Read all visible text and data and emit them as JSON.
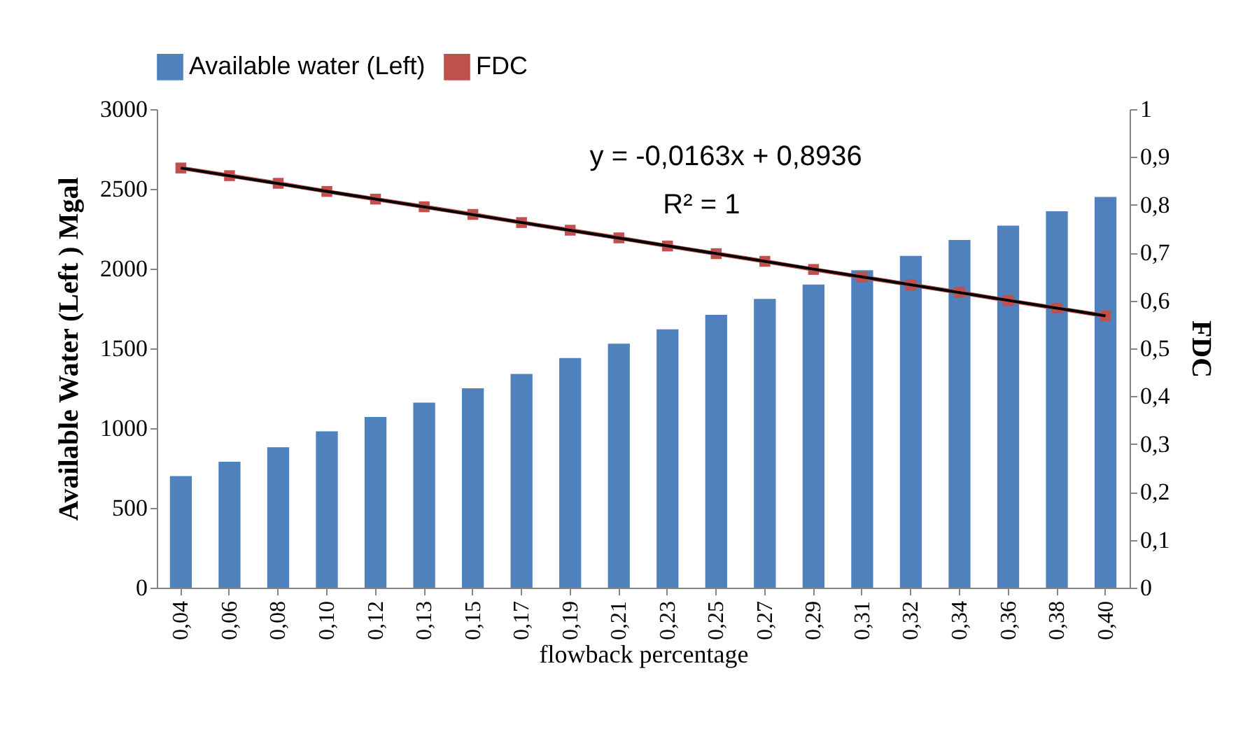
{
  "chart_data": {
    "type": "bar",
    "xlabel": "flowback percentage",
    "ylabel": "Available Water (Left )  Mgal",
    "y2label": "FDC",
    "categories": [
      "0,04",
      "0,06",
      "0,08",
      "0,10",
      "0,12",
      "0,13",
      "0,15",
      "0,17",
      "0,19",
      "0,21",
      "0,23",
      "0,25",
      "0,27",
      "0,29",
      "0,31",
      "0,32",
      "0,34",
      "0,36",
      "0,38",
      "0,40"
    ],
    "series": [
      {
        "name": "Available water (Left)",
        "color": "#4f81bd",
        "values": [
          700,
          790,
          880,
          980,
          1070,
          1160,
          1250,
          1340,
          1440,
          1530,
          1620,
          1710,
          1810,
          1900,
          1990,
          2080,
          2180,
          2270,
          2360,
          2450
        ]
      },
      {
        "name": "FDC",
        "type": "line",
        "axis": "y2",
        "color": "#c0504d",
        "marker": "square",
        "values": [
          0.877,
          0.861,
          0.845,
          0.828,
          0.812,
          0.796,
          0.78,
          0.763,
          0.747,
          0.731,
          0.714,
          0.698,
          0.682,
          0.665,
          0.649,
          0.633,
          0.617,
          0.6,
          0.584,
          0.568
        ]
      },
      {
        "type": "line",
        "axis": "y2",
        "color": "#000000",
        "marker": "none",
        "x": [
          "0,04",
          "0,40"
        ],
        "values": [
          0.877,
          0.568
        ]
      }
    ],
    "ylim": [
      0,
      3000
    ],
    "yticks": [
      0,
      500,
      1000,
      1500,
      2000,
      2500,
      3000
    ],
    "y2lim": [
      0,
      1
    ],
    "y2ticks": [
      0,
      {
        "value": 0.1,
        "label": "0,1"
      },
      {
        "value": 0.2,
        "label": "0,2"
      },
      {
        "value": 0.3,
        "label": "0,3"
      },
      {
        "value": 0.4,
        "label": "0,4"
      },
      {
        "value": 0.5,
        "label": "0,5"
      },
      {
        "value": 0.6,
        "label": "0,6"
      },
      {
        "value": 0.7,
        "label": "0,7"
      },
      {
        "value": 0.8,
        "label": "0,8"
      },
      {
        "value": 0.9,
        "label": "0,9"
      },
      1
    ],
    "annotations": [
      "y = -0,0163x + 0,8936",
      "R² = 1"
    ],
    "legend": "top",
    "grid": false
  }
}
